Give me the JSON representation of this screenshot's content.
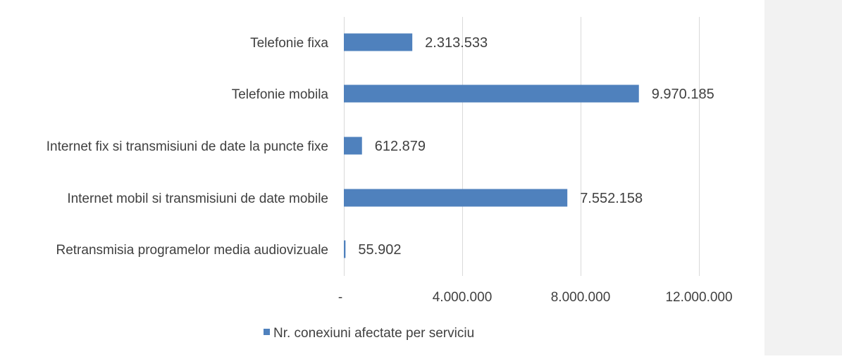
{
  "chart_data": {
    "type": "bar",
    "orientation": "horizontal",
    "categories": [
      "Telefonie fixa",
      "Telefonie mobila",
      "Internet fix si transmisiuni de date la puncte fixe",
      "Internet mobil si transmisiuni de date mobile",
      "Retransmisia programelor media audiovizuale"
    ],
    "series": [
      {
        "name": "Nr. conexiuni afectate per serviciu",
        "values": [
          2313533,
          9970185,
          612879,
          7552158,
          55902
        ],
        "data_labels": [
          "2.313.533",
          "9.970.185",
          "612.879",
          "7.552.158",
          "55.902"
        ],
        "color": "#4f81bd"
      }
    ],
    "x_ticks": [
      {
        "value": 0,
        "label": "-"
      },
      {
        "value": 4000000,
        "label": "4.000.000"
      },
      {
        "value": 8000000,
        "label": "8.000.000"
      },
      {
        "value": 12000000,
        "label": "12.000.000"
      }
    ],
    "xlim": [
      0,
      12000000
    ],
    "grid": true,
    "legend_position": "bottom",
    "title": "",
    "xlabel": "",
    "ylabel": ""
  },
  "colors": {
    "bar": "#4f81bd",
    "gridline": "#d9d9d9",
    "text": "#404040",
    "side_panel": "#f2f2f2"
  }
}
